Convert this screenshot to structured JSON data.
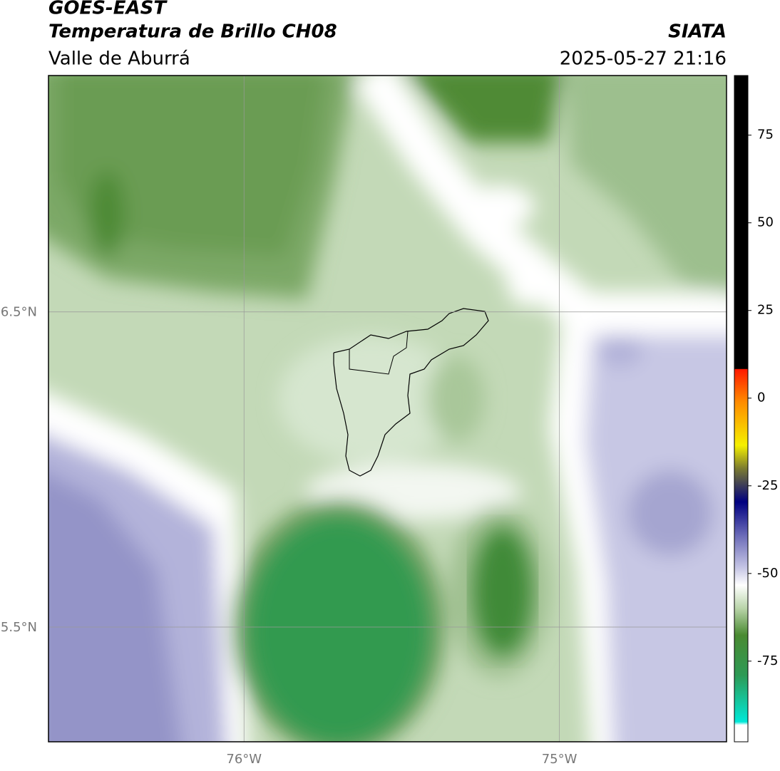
{
  "header": {
    "title": "GOES-EAST",
    "subtitle": "Temperatura de Brillo CH08",
    "region": "Valle de Aburrá",
    "source": "SIATA",
    "timestamp": "2025-05-27 21:16"
  },
  "map": {
    "lon_lim": [
      -76.62,
      -74.47
    ],
    "lat_lim": [
      5.136,
      7.25
    ],
    "lon_ticks": [
      {
        "value": -76,
        "label": "76°W"
      },
      {
        "value": -75,
        "label": "75°W"
      }
    ],
    "lat_ticks": [
      {
        "value": 6.5,
        "label": "6.5°N"
      },
      {
        "value": 5.5,
        "label": "5.5°N"
      }
    ],
    "grid": true
  },
  "colorbar": {
    "lim": [
      -98,
      92
    ],
    "ticks": [
      75,
      50,
      25,
      0,
      -25,
      -50,
      -75
    ]
  }
}
